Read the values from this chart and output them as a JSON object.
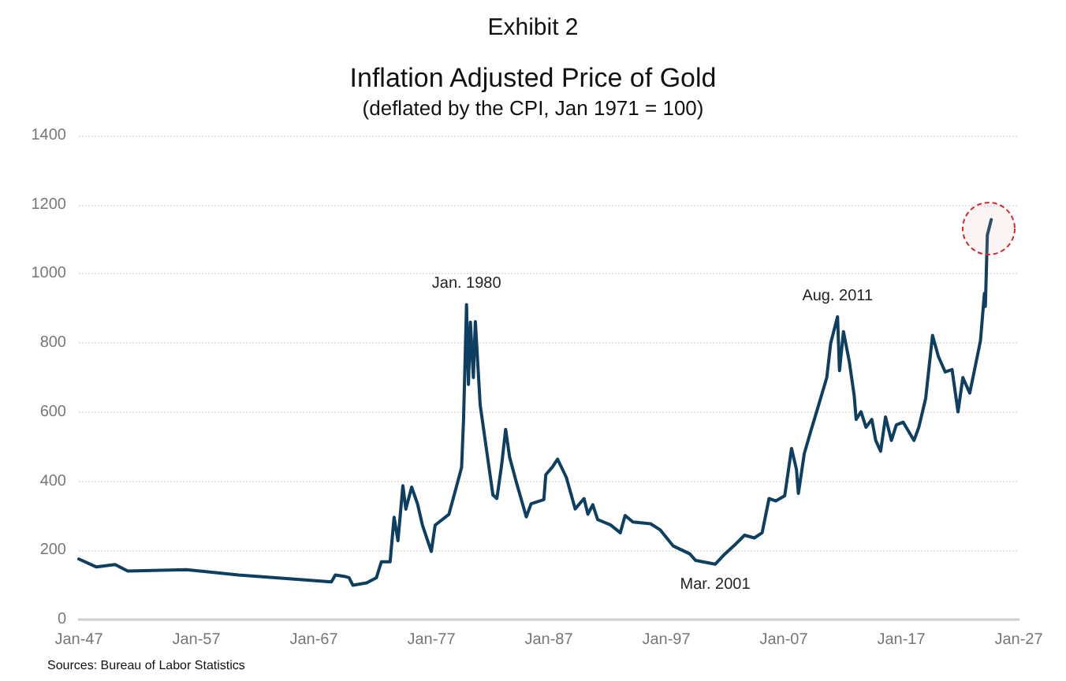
{
  "chart_data": {
    "type": "line",
    "title": "Inflation Adjusted Price of Gold",
    "subtitle": "(deflated by the CPI, Jan 1971 = 100)",
    "annotations": [
      "Exhibit 2",
      {
        "text": "Jan. 1980",
        "x": "1980-01",
        "y": 911
      },
      {
        "text": "Aug. 2011",
        "x": "2011-08",
        "y": 876
      },
      {
        "text": "Mar. 2001",
        "x": "2001-03",
        "y": 160
      },
      "Sources: Bureau of Labor Statistics"
    ],
    "x": [
      "1947-01",
      "1948-07",
      "1950-02",
      "1951-03",
      "1956-03",
      "1960-08",
      "1968-07",
      "1968-11",
      "1969-08",
      "1970-01",
      "1970-05",
      "1971-07",
      "1972-05",
      "1972-10",
      "1973-07",
      "1973-11",
      "1974-03",
      "1974-08",
      "1974-11",
      "1975-05",
      "1975-11",
      "1976-04",
      "1977-01",
      "1977-05",
      "1978-07",
      "1979-03",
      "1979-08",
      "1979-10",
      "1980-01",
      "1980-03",
      "1980-05",
      "1980-08",
      "1980-10",
      "1981-03",
      "1981-10",
      "1982-04",
      "1982-08",
      "1983-01",
      "1983-05",
      "1983-09",
      "1984-04",
      "1985-02",
      "1985-07",
      "1986-08",
      "1986-10",
      "1987-05",
      "1987-10",
      "1988-07",
      "1989-04",
      "1990-01",
      "1990-05",
      "1990-10",
      "1991-03",
      "1992-04",
      "1993-02",
      "1993-07",
      "1994-03",
      "1995-09",
      "1996-07",
      "1997-08",
      "1999-01",
      "1999-07",
      "2001-03",
      "2002-01",
      "2002-10",
      "2003-09",
      "2004-07",
      "2005-03",
      "2005-10",
      "2006-05",
      "2007-02",
      "2007-09",
      "2008-02",
      "2008-04",
      "2008-10",
      "2009-05",
      "2010-01",
      "2010-09",
      "2011-01",
      "2011-08",
      "2011-10",
      "2012-02",
      "2012-08",
      "2013-01",
      "2013-03",
      "2013-08",
      "2014-01",
      "2014-07",
      "2014-11",
      "2015-04",
      "2015-09",
      "2016-03",
      "2016-08",
      "2017-03",
      "2018-02",
      "2018-07",
      "2019-02",
      "2019-09",
      "2020-03",
      "2020-10",
      "2021-05",
      "2021-11",
      "2022-04",
      "2022-11",
      "2023-04",
      "2023-10",
      "2024-02",
      "2024-03",
      "2024-05",
      "2024-09"
    ],
    "series": [
      {
        "color": "#0f3f60",
        "values": [
          175,
          152,
          159,
          140,
          144,
          129,
          109,
          129,
          125,
          121,
          99,
          106,
          121,
          167,
          167,
          296,
          228,
          387,
          319,
          383,
          334,
          273,
          197,
          273,
          304,
          387,
          440,
          580,
          911,
          680,
          860,
          700,
          862,
          620,
          480,
          360,
          350,
          450,
          550,
          470,
          396,
          297,
          335,
          347,
          419,
          442,
          464,
          411,
          320,
          350,
          305,
          332,
          289,
          274,
          251,
          301,
          282,
          277,
          259,
          213,
          190,
          171,
          160,
          190,
          213,
          244,
          236,
          251,
          350,
          343,
          358,
          495,
          434,
          365,
          480,
          548,
          624,
          700,
          800,
          876,
          720,
          833,
          746,
          647,
          579,
          601,
          556,
          579,
          518,
          487,
          586,
          518,
          563,
          571,
          518,
          556,
          640,
          822,
          761,
          716,
          723,
          601,
          700,
          655,
          723,
          807,
          944,
          906,
          1112,
          1157
        ]
      }
    ],
    "xlim": [
      "1947-01",
      "2027-01"
    ],
    "xticks": [
      {
        "value": "1947-01",
        "label": "Jan-47"
      },
      {
        "value": "1957-01",
        "label": "Jan-57"
      },
      {
        "value": "1967-01",
        "label": "Jan-67"
      },
      {
        "value": "1977-01",
        "label": "Jan-77"
      },
      {
        "value": "1987-01",
        "label": "Jan-87"
      },
      {
        "value": "1997-01",
        "label": "Jan-97"
      },
      {
        "value": "2007-01",
        "label": "Jan-07"
      },
      {
        "value": "2017-01",
        "label": "Jan-17"
      },
      {
        "value": "2027-01",
        "label": "Jan-27"
      }
    ],
    "ylim": [
      0,
      1400
    ],
    "yticks": [
      0,
      200,
      400,
      600,
      800,
      1000,
      1200,
      1400
    ],
    "grid": "y",
    "marker": "none",
    "line_style": "solid"
  }
}
